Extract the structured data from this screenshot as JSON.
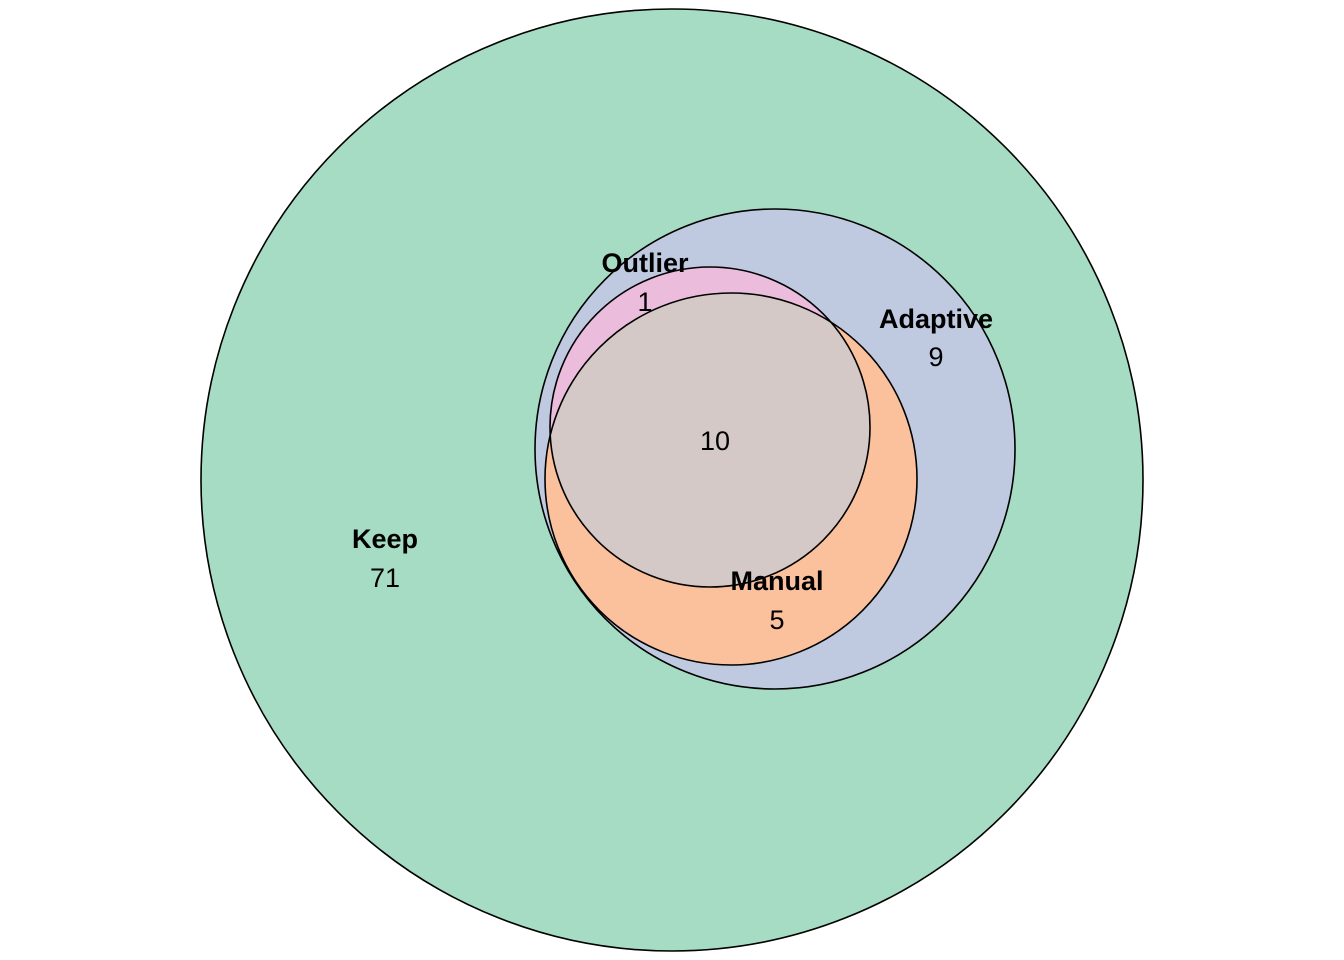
{
  "sets": {
    "keep": {
      "label": "Keep",
      "count": "71",
      "color": "#a5dcc3"
    },
    "adaptive": {
      "label": "Adaptive",
      "count": "9",
      "color": "#bfc9e0"
    },
    "outlier": {
      "label": "Outlier",
      "count": "1",
      "color": "#ecbcdd"
    },
    "manual": {
      "label": "Manual",
      "count": "5",
      "color": "#fbc19d"
    }
  },
  "intersection": {
    "count": "10",
    "color": "#d4c9c6"
  }
}
